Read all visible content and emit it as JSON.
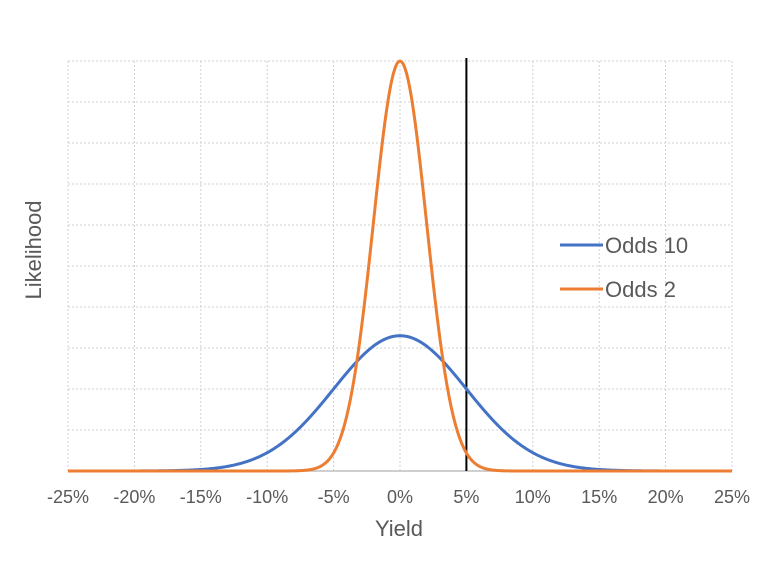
{
  "chart_data": {
    "type": "line",
    "title": "",
    "xlabel": "Yield",
    "ylabel": "Likelihood",
    "xlim": [
      -0.25,
      0.25
    ],
    "ylim": [
      0,
      1
    ],
    "x_tick_labels": [
      "-25%",
      "-20%",
      "-15%",
      "-10%",
      "-5%",
      "0%",
      "5%",
      "10%",
      "15%",
      "20%",
      "25%"
    ],
    "grid": true,
    "legend_position": "right",
    "reference_line": {
      "x": 0.05
    },
    "series": [
      {
        "name": "Odds 10",
        "color": "#4472C4",
        "mean": 0,
        "sigma": 0.05,
        "peak": 0.33
      },
      {
        "name": "Odds 2",
        "color": "#ED7D31",
        "mean": 0,
        "sigma": 0.02,
        "peak": 1.0
      }
    ]
  }
}
